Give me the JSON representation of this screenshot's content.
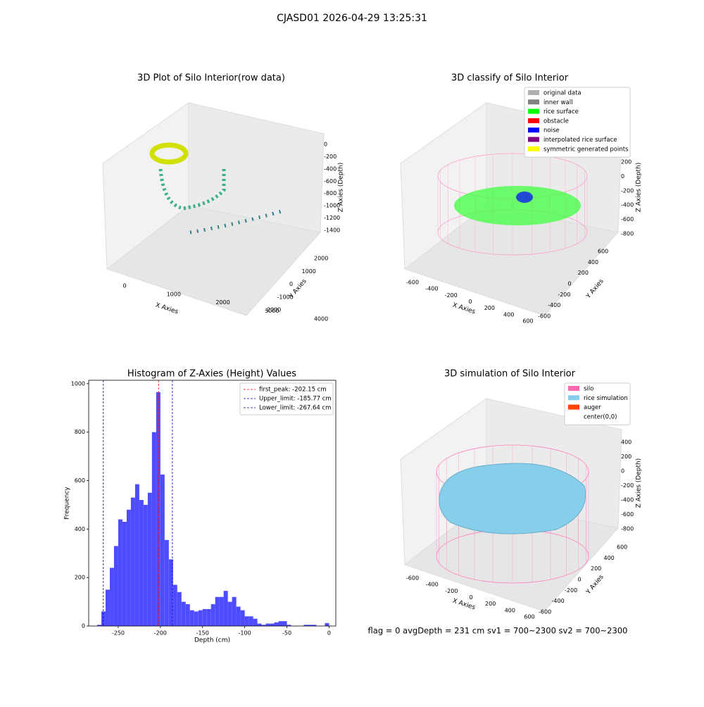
{
  "title": "CJASD01 2026-04-29 13:25:31",
  "footer": "flag = 0     avgDepth = 231 cm  sv1 = 700~2300  sv2 = 700~2300",
  "chart_data": [
    {
      "type": "scatter3d",
      "title": "3D Plot of Silo Interior(row data)",
      "xlabel": "X Axies",
      "ylabel": "Y Axies",
      "zlabel": "Z Axies (Depth)",
      "xticks": [
        0,
        1000,
        2000,
        3000,
        4000
      ],
      "yticks": [
        -2000,
        -1000,
        0,
        1000,
        2000
      ],
      "zticks": [
        0,
        -200,
        -400,
        -600,
        -800,
        -1000,
        -1200,
        -1400
      ]
    },
    {
      "type": "scatter3d",
      "title": "3D classify of Silo Interior",
      "xlabel": "X Axies",
      "ylabel": "Y Axies",
      "zlabel": "Z Axies (Depth)",
      "xticks": [
        -600,
        -400,
        -200,
        0,
        200,
        400,
        600
      ],
      "yticks": [
        -600,
        -400,
        -200,
        0,
        200,
        400,
        600
      ],
      "zticks": [
        200,
        0,
        -200,
        -400,
        -600,
        -800
      ],
      "legend": [
        {
          "name": "original data",
          "color": "#b0b0b0"
        },
        {
          "name": "inner wall",
          "color": "#808080"
        },
        {
          "name": "rice surface",
          "color": "#00ff00"
        },
        {
          "name": "obstacle",
          "color": "#ff0000"
        },
        {
          "name": "noise",
          "color": "#0000ff"
        },
        {
          "name": "interpolated rice surface",
          "color": "#800080"
        },
        {
          "name": "symmetric generated points",
          "color": "#ffff00"
        }
      ]
    },
    {
      "type": "histogram",
      "title": "Histogram of Z-Axies (Height) Values",
      "xlabel": "Depth (cm)",
      "ylabel": "Frequency",
      "color": "#4d4dff",
      "bins": [
        -275,
        -270,
        -265,
        -260,
        -255,
        -250,
        -245,
        -240,
        -235,
        -230,
        -225,
        -220,
        -215,
        -210,
        -205,
        -200,
        -195,
        -190,
        -185,
        -180,
        -175,
        -170,
        -165,
        -160,
        -155,
        -150,
        -145,
        -140,
        -135,
        -130,
        -125,
        -120,
        -115,
        -110,
        -105,
        -100,
        -95,
        -90,
        -85,
        -80,
        -75,
        -70,
        -65,
        -60,
        -55,
        -50,
        -45,
        -40,
        -35,
        -30,
        -25,
        -20,
        -15,
        -10,
        -5,
        0
      ],
      "values": [
        5,
        60,
        150,
        240,
        330,
        440,
        430,
        480,
        530,
        585,
        520,
        500,
        550,
        800,
        965,
        625,
        355,
        275,
        170,
        140,
        100,
        90,
        65,
        60,
        65,
        70,
        70,
        90,
        120,
        120,
        145,
        100,
        120,
        80,
        65,
        40,
        40,
        30,
        10,
        5,
        10,
        10,
        15,
        20,
        20,
        5,
        0,
        0,
        0,
        5,
        5,
        5,
        0,
        0,
        12
      ],
      "xlim": [
        -285,
        8
      ],
      "ylim": [
        0,
        1014
      ],
      "xticks": [
        -250,
        -200,
        -150,
        -100,
        -50,
        0
      ],
      "yticks": [
        0,
        200,
        400,
        600,
        800,
        1000
      ],
      "lines": [
        {
          "label": "first_peak: -202.15 cm",
          "x": -202.15,
          "color": "#ff0000"
        },
        {
          "label": "Upper_limit: -185.77 cm",
          "x": -185.77,
          "color": "#0000cd"
        },
        {
          "label": "Lower_limit: -267.64 cm",
          "x": -267.64,
          "color": "#000080"
        }
      ],
      "legend_position": "upper right"
    },
    {
      "type": "surface3d",
      "title": "3D simulation of Silo Interior",
      "xlabel": "X Axies",
      "ylabel": "Y Axies",
      "zlabel": "Z Axies (Depth)",
      "xticks": [
        -600,
        -400,
        -200,
        0,
        200,
        400,
        600
      ],
      "yticks": [
        -600,
        -400,
        -200,
        0,
        200,
        400,
        600
      ],
      "zticks": [
        400,
        200,
        0,
        -200,
        -400,
        -600,
        -800
      ],
      "legend": [
        {
          "name": "silo",
          "color": "#ff69b4"
        },
        {
          "name": "rice simulation",
          "color": "#87ceeb"
        },
        {
          "name": "auger",
          "color": "#ff4500"
        },
        {
          "name": "center(0,0)",
          "color": "#ffffff"
        }
      ]
    }
  ]
}
